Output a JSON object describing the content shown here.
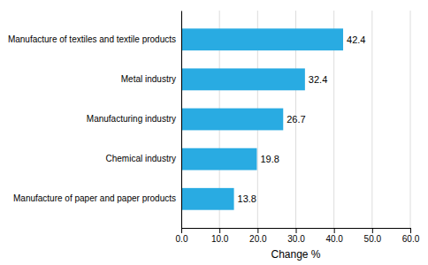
{
  "chart_data": {
    "type": "bar",
    "orientation": "horizontal",
    "categories": [
      "Manufacture of paper and paper products",
      "Chemical industry",
      "Manufacturing industry",
      "Metal industry",
      "Manufacture of textiles and textile products"
    ],
    "values": [
      13.8,
      19.8,
      26.7,
      32.4,
      42.4
    ],
    "color": "#29ABE2",
    "xlabel": "Change %",
    "xlim": [
      0,
      60
    ],
    "xticks": [
      {
        "value": 0,
        "label": "0.0"
      },
      {
        "value": 10,
        "label": "10.0"
      },
      {
        "value": 20,
        "label": "20.0"
      },
      {
        "value": 30,
        "label": "30.0"
      },
      {
        "value": 40,
        "label": "40.0"
      },
      {
        "value": 50,
        "label": "50.0"
      },
      {
        "value": 60,
        "label": "60.0"
      }
    ],
    "grid": true,
    "data_labels": true
  }
}
